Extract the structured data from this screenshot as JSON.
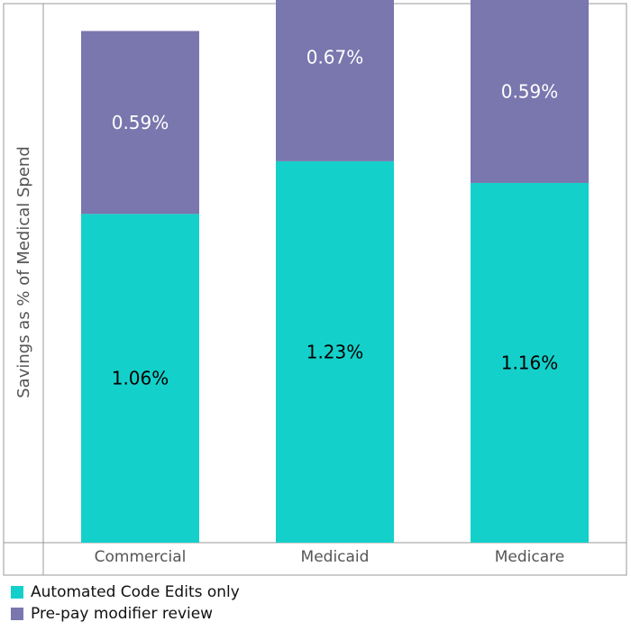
{
  "chart_data": {
    "type": "bar",
    "stacked": true,
    "categories": [
      "Commercial",
      "Medicaid",
      "Medicare"
    ],
    "series": [
      {
        "name": "Automated Code Edits only",
        "values": [
          1.06,
          1.23,
          1.16
        ],
        "color": "#14D0CA"
      },
      {
        "name": "Pre-pay modifier review",
        "values": [
          0.59,
          0.67,
          0.59
        ],
        "color": "#7A76AE"
      }
    ],
    "data_labels": [
      [
        "1.06%",
        "1.23%",
        "1.16%"
      ],
      [
        "0.59%",
        "0.67%",
        "0.59%"
      ]
    ],
    "ylabel": "Savings as % of Medical Spend",
    "xlabel": "",
    "title": "",
    "ylim": [
      0,
      1.95
    ],
    "grid": false,
    "legend_position": "bottom-left",
    "colors": {
      "axis": "#999999",
      "tick_text": "#555555",
      "label_on_teal": "#000000",
      "label_on_purple": "#ffffff"
    }
  }
}
